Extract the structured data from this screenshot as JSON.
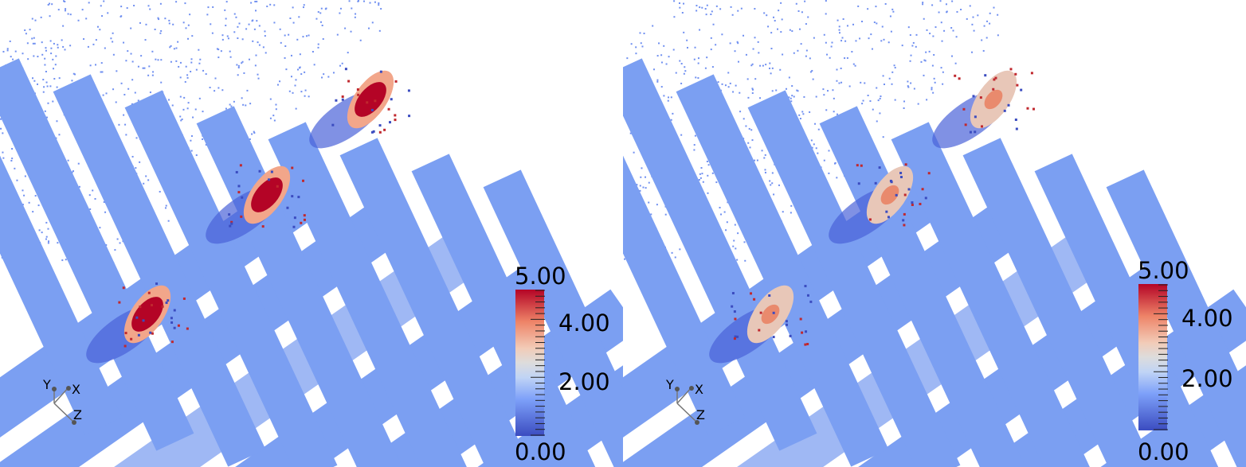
{
  "panels": [
    {
      "id": "left",
      "colorbar": {
        "max_label": "5.00",
        "labels": [
          "4.00",
          "2.00"
        ],
        "min_label": "0.00",
        "range": [
          0,
          5
        ],
        "colormap": "cool-warm"
      },
      "axes_triad": {
        "x": "X",
        "y": "Y",
        "z": "Z"
      },
      "highlight_intensity": "strong"
    },
    {
      "id": "right",
      "colorbar": {
        "max_label": "5.00",
        "labels": [
          "4.00",
          "2.00"
        ],
        "min_label": "0.00",
        "range": [
          0,
          5
        ],
        "colormap": "cool-warm"
      },
      "axes_triad": {
        "x": "X",
        "y": "Y",
        "z": "Z"
      },
      "highlight_intensity": "moderate"
    }
  ],
  "colors": {
    "base": "#7b9ff2",
    "low": "#3b4cc0",
    "mid": "#dddddd",
    "high": "#b40426"
  }
}
